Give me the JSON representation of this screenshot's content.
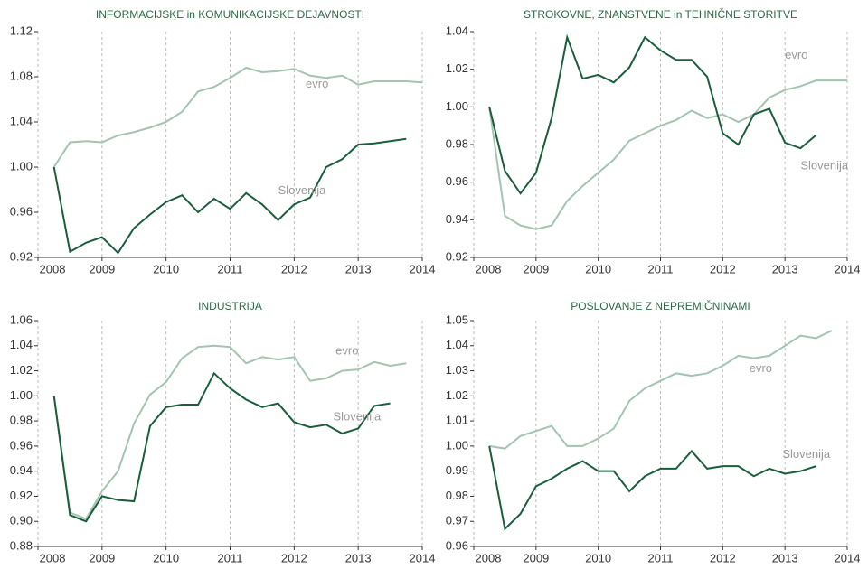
{
  "chart_data": [
    {
      "type": "line",
      "title": "INFORMACIJSKE in KOMUNIKACIJSKE DEJAVNOSTI",
      "x": [
        2008.25,
        2008.5,
        2008.75,
        2009,
        2009.25,
        2009.5,
        2009.75,
        2010,
        2010.25,
        2010.5,
        2010.75,
        2011,
        2011.25,
        2011.5,
        2011.75,
        2012,
        2012.25,
        2012.5,
        2012.75,
        2013,
        2013.25,
        2013.5,
        2013.75,
        2014
      ],
      "xlim": [
        2008,
        2014
      ],
      "xticks": [
        2008,
        2009,
        2010,
        2011,
        2012,
        2013,
        2014
      ],
      "ylim": [
        0.92,
        1.12
      ],
      "yticks": [
        0.92,
        0.96,
        {
          "value": 1.0,
          "label": "1.00"
        },
        1.04,
        1.08,
        1.12
      ],
      "series": [
        {
          "name": "evro",
          "color": "#a3c4b0",
          "values": [
            1.0,
            1.022,
            1.023,
            1.022,
            1.028,
            1.031,
            1.035,
            1.04,
            1.049,
            1.067,
            1.071,
            1.079,
            1.088,
            1.084,
            1.085,
            1.087,
            1.081,
            1.079,
            1.081,
            1.073,
            1.076,
            1.076,
            1.076,
            1.075
          ]
        },
        {
          "name": "Slovenija",
          "color": "#1a5e3c",
          "values": [
            1.0,
            0.925,
            0.933,
            0.938,
            0.924,
            0.946,
            0.958,
            0.969,
            0.975,
            0.96,
            0.972,
            0.963,
            0.977,
            0.967,
            0.953,
            0.967,
            0.973,
            1.0,
            1.007,
            1.02,
            1.021,
            1.023,
            1.025,
            null
          ]
        }
      ]
    },
    {
      "type": "line",
      "title": "STROKOVNE, ZNANSTVENE in TEHNIČNE STORITVE",
      "x": [
        2008.25,
        2008.5,
        2008.75,
        2009,
        2009.25,
        2009.5,
        2009.75,
        2010,
        2010.25,
        2010.5,
        2010.75,
        2011,
        2011.25,
        2011.5,
        2011.75,
        2012,
        2012.25,
        2012.5,
        2012.75,
        2013,
        2013.25,
        2013.5,
        2013.75,
        2014
      ],
      "xlim": [
        2008,
        2014
      ],
      "xticks": [
        2008,
        2009,
        2010,
        2011,
        2012,
        2013,
        2014
      ],
      "ylim": [
        0.92,
        1.04
      ],
      "yticks": [
        0.92,
        0.94,
        0.96,
        0.98,
        {
          "value": 1.0,
          "label": "1.00"
        },
        1.02,
        1.04
      ],
      "series": [
        {
          "name": "evro",
          "color": "#a3c4b0",
          "values": [
            1.0,
            0.942,
            0.937,
            0.935,
            0.937,
            0.95,
            0.958,
            0.965,
            0.972,
            0.982,
            0.986,
            0.99,
            0.993,
            0.998,
            0.994,
            0.996,
            0.992,
            0.996,
            1.005,
            1.009,
            1.011,
            1.014,
            1.014,
            1.014
          ]
        },
        {
          "name": "Slovenija",
          "color": "#1a5e3c",
          "values": [
            1.0,
            0.966,
            0.954,
            0.965,
            0.994,
            1.037,
            1.015,
            1.017,
            1.013,
            1.021,
            1.037,
            1.03,
            1.025,
            1.025,
            1.016,
            0.986,
            0.98,
            0.996,
            0.999,
            0.981,
            0.978,
            0.985,
            null,
            null
          ]
        }
      ]
    },
    {
      "type": "line",
      "title": "INDUSTRIJA",
      "x": [
        2008.25,
        2008.5,
        2008.75,
        2009,
        2009.25,
        2009.5,
        2009.75,
        2010,
        2010.25,
        2010.5,
        2010.75,
        2011,
        2011.25,
        2011.5,
        2011.75,
        2012,
        2012.25,
        2012.5,
        2012.75,
        2013,
        2013.25,
        2013.5,
        2013.75,
        2014
      ],
      "xlim": [
        2008,
        2014
      ],
      "xticks": [
        2008,
        2009,
        2010,
        2011,
        2012,
        2013,
        2014
      ],
      "ylim": [
        0.88,
        1.06
      ],
      "yticks": [
        0.88,
        {
          "value": 0.9,
          "label": "0.90"
        },
        0.92,
        0.94,
        0.96,
        0.98,
        {
          "value": 1.0,
          "label": "1.00"
        },
        1.02,
        1.04,
        1.06
      ],
      "series": [
        {
          "name": "evro",
          "color": "#a3c4b0",
          "values": [
            1.0,
            0.907,
            0.902,
            0.924,
            0.94,
            0.978,
            1.001,
            1.011,
            1.03,
            1.039,
            1.04,
            1.039,
            1.026,
            1.031,
            1.029,
            1.031,
            1.012,
            1.014,
            1.02,
            1.021,
            1.027,
            1.024,
            1.026,
            null
          ]
        },
        {
          "name": "Slovenija",
          "color": "#1a5e3c",
          "values": [
            1.0,
            0.905,
            0.9,
            0.92,
            0.917,
            0.916,
            0.976,
            0.991,
            0.993,
            0.993,
            1.018,
            1.006,
            0.997,
            0.991,
            0.994,
            0.979,
            0.975,
            0.977,
            0.97,
            0.974,
            0.992,
            0.994,
            null,
            null
          ]
        }
      ]
    },
    {
      "type": "line",
      "title": "POSLOVANJE Z NEPREMIČNINAMI",
      "x": [
        2008.25,
        2008.5,
        2008.75,
        2009,
        2009.25,
        2009.5,
        2009.75,
        2010,
        2010.25,
        2010.5,
        2010.75,
        2011,
        2011.25,
        2011.5,
        2011.75,
        2012,
        2012.25,
        2012.5,
        2012.75,
        2013,
        2013.25,
        2013.5,
        2013.75,
        2014
      ],
      "xlim": [
        2008,
        2014
      ],
      "xticks": [
        2008,
        2009,
        2010,
        2011,
        2012,
        2013,
        2014
      ],
      "ylim": [
        0.96,
        1.05
      ],
      "yticks": [
        0.96,
        0.97,
        0.98,
        0.99,
        {
          "value": 1.0,
          "label": "1.00"
        },
        1.01,
        1.02,
        1.03,
        1.04,
        1.05
      ],
      "series": [
        {
          "name": "evro",
          "color": "#a3c4b0",
          "values": [
            1.0,
            0.999,
            1.004,
            1.006,
            1.008,
            1.0,
            1.0,
            1.003,
            1.007,
            1.018,
            1.023,
            1.026,
            1.029,
            1.028,
            1.029,
            1.032,
            1.036,
            1.035,
            1.036,
            1.04,
            1.044,
            1.043,
            1.046,
            null
          ]
        },
        {
          "name": "Slovenija",
          "color": "#1a5e3c",
          "values": [
            1.0,
            0.967,
            0.973,
            0.984,
            0.987,
            0.991,
            0.994,
            0.99,
            0.99,
            0.982,
            0.988,
            0.991,
            0.991,
            0.998,
            0.991,
            0.992,
            0.992,
            0.988,
            0.991,
            0.989,
            0.99,
            0.992,
            null,
            null
          ]
        }
      ]
    }
  ]
}
